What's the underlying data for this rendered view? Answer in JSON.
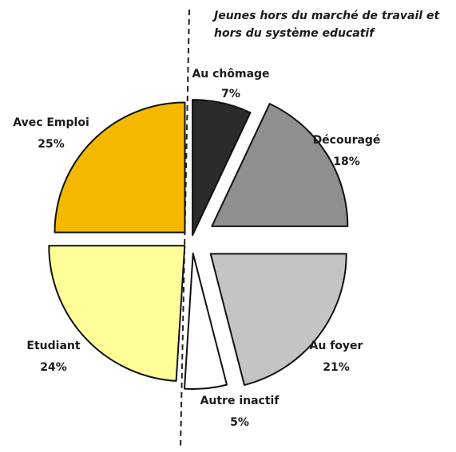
{
  "chart_data": {
    "type": "pie",
    "annotation": [
      "Jeunes hors du marché de travail et",
      "hors du système educatif"
    ],
    "slices": [
      {
        "label": "Au chômage",
        "pct_text": "7%",
        "value": 7,
        "color": "#2b2b2b"
      },
      {
        "label": "Découragé",
        "pct_text": "18%",
        "value": 18,
        "color": "#8f8f8f"
      },
      {
        "label": "Au foyer",
        "pct_text": "21%",
        "value": 21,
        "color": "#c4c4c4"
      },
      {
        "label": "Autre inactif",
        "pct_text": "5%",
        "value": 5,
        "color": "#ffffff"
      },
      {
        "label": "Etudiant",
        "pct_text": "24%",
        "value": 24,
        "color": "#ffff99"
      },
      {
        "label": "Avec Emploi",
        "pct_text": "25%",
        "value": 25,
        "color": "#f5b800"
      }
    ]
  }
}
